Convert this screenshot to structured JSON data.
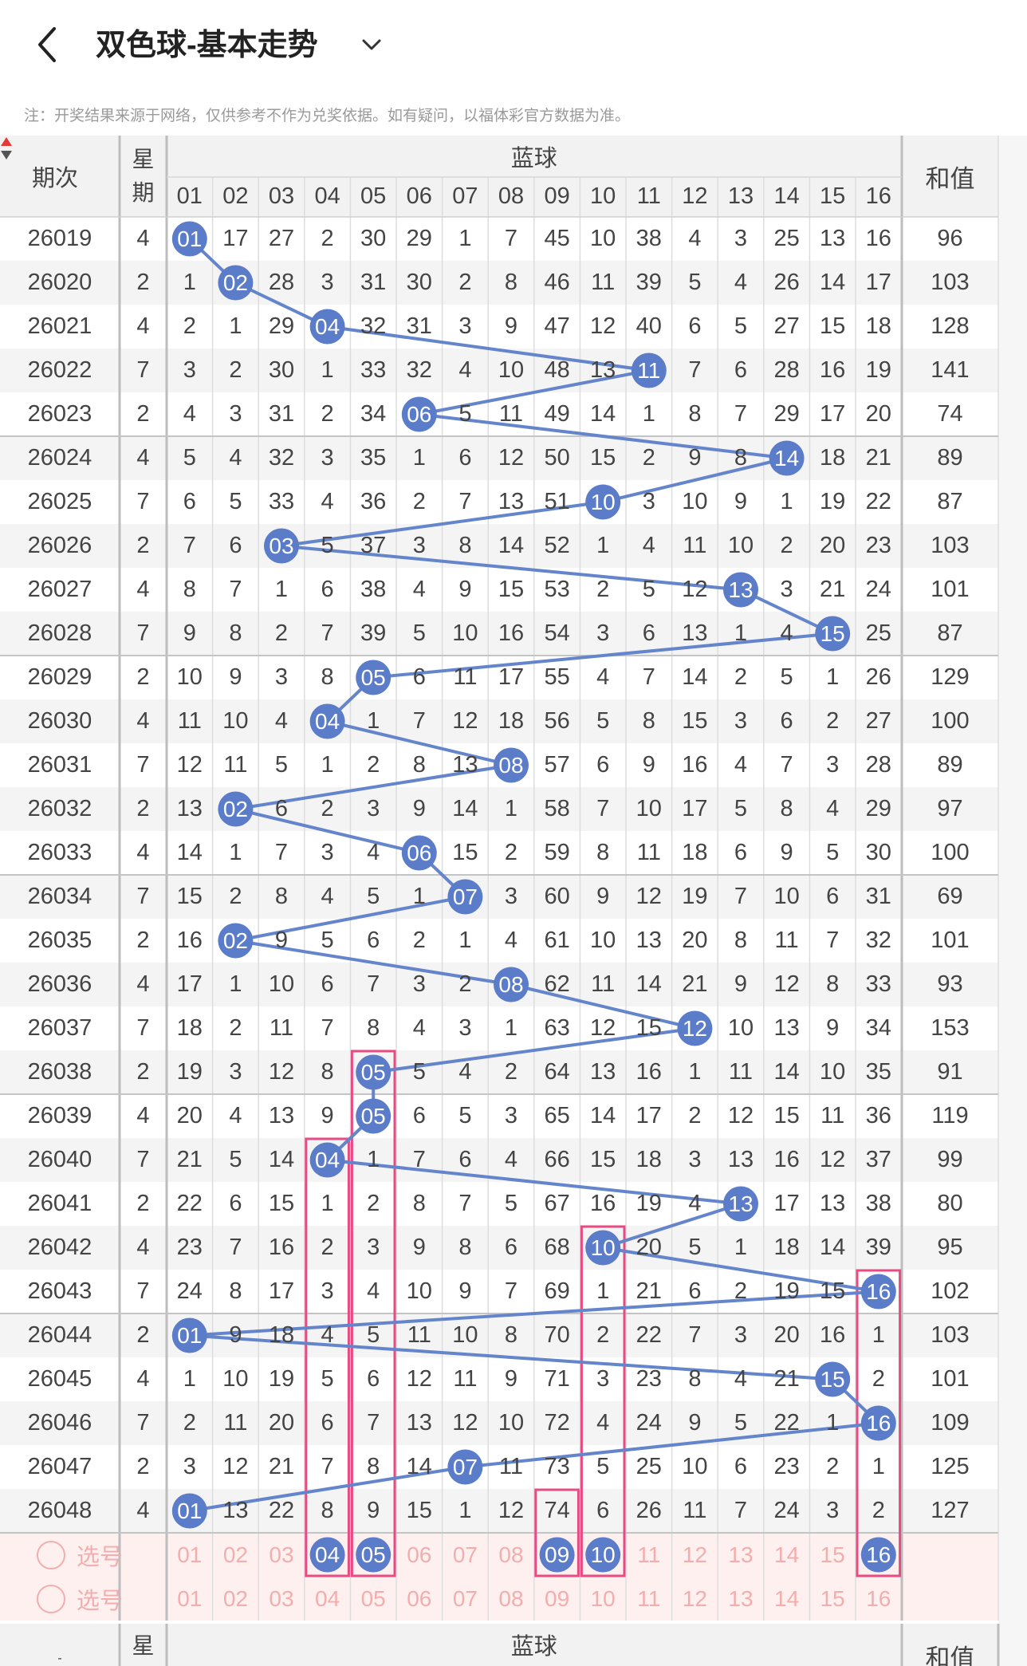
{
  "header": {
    "title": "双色球-基本走势"
  },
  "note": "注：开奖结果来源于网络，仅供参考不作为兑奖依据。如有疑问，以福体彩官方数据为准。",
  "table": {
    "col_period": "期次",
    "col_week_1": "星",
    "col_week_2": "期",
    "col_blue": "蓝球",
    "col_sum": "和值",
    "balls": [
      "01",
      "02",
      "03",
      "04",
      "05",
      "06",
      "07",
      "08",
      "09",
      "10",
      "11",
      "12",
      "13",
      "14",
      "15",
      "16"
    ],
    "rows": [
      {
        "period": "26019",
        "week": "4",
        "hit": 1,
        "miss": [
          0,
          17,
          27,
          2,
          30,
          29,
          1,
          7,
          45,
          10,
          38,
          4,
          3,
          25,
          13,
          16
        ],
        "sum": "96"
      },
      {
        "period": "26020",
        "week": "2",
        "hit": 2,
        "miss": [
          1,
          0,
          28,
          3,
          31,
          30,
          2,
          8,
          46,
          11,
          39,
          5,
          4,
          26,
          14,
          17
        ],
        "sum": "103"
      },
      {
        "period": "26021",
        "week": "4",
        "hit": 4,
        "miss": [
          2,
          1,
          29,
          0,
          32,
          31,
          3,
          9,
          47,
          12,
          40,
          6,
          5,
          27,
          15,
          18
        ],
        "sum": "128"
      },
      {
        "period": "26022",
        "week": "7",
        "hit": 11,
        "miss": [
          3,
          2,
          30,
          1,
          33,
          32,
          4,
          10,
          48,
          13,
          0,
          7,
          6,
          28,
          16,
          19
        ],
        "sum": "141"
      },
      {
        "period": "26023",
        "week": "2",
        "hit": 6,
        "miss": [
          4,
          3,
          31,
          2,
          34,
          0,
          5,
          11,
          49,
          14,
          1,
          8,
          7,
          29,
          17,
          20
        ],
        "sum": "74"
      },
      {
        "period": "26024",
        "week": "4",
        "hit": 14,
        "miss": [
          5,
          4,
          32,
          3,
          35,
          1,
          6,
          12,
          50,
          15,
          2,
          9,
          8,
          0,
          18,
          21
        ],
        "sum": "89"
      },
      {
        "period": "26025",
        "week": "7",
        "hit": 10,
        "miss": [
          6,
          5,
          33,
          4,
          36,
          2,
          7,
          13,
          51,
          0,
          3,
          10,
          9,
          1,
          19,
          22
        ],
        "sum": "87"
      },
      {
        "period": "26026",
        "week": "2",
        "hit": 3,
        "miss": [
          7,
          6,
          0,
          5,
          37,
          3,
          8,
          14,
          52,
          1,
          4,
          11,
          10,
          2,
          20,
          23
        ],
        "sum": "103"
      },
      {
        "period": "26027",
        "week": "4",
        "hit": 13,
        "miss": [
          8,
          7,
          1,
          6,
          38,
          4,
          9,
          15,
          53,
          2,
          5,
          12,
          0,
          3,
          21,
          24
        ],
        "sum": "101"
      },
      {
        "period": "26028",
        "week": "7",
        "hit": 15,
        "miss": [
          9,
          8,
          2,
          7,
          39,
          5,
          10,
          16,
          54,
          3,
          6,
          13,
          1,
          4,
          0,
          25
        ],
        "sum": "87"
      },
      {
        "period": "26029",
        "week": "2",
        "hit": 5,
        "miss": [
          10,
          9,
          3,
          8,
          0,
          6,
          11,
          17,
          55,
          4,
          7,
          14,
          2,
          5,
          1,
          26
        ],
        "sum": "129"
      },
      {
        "period": "26030",
        "week": "4",
        "hit": 4,
        "miss": [
          11,
          10,
          4,
          0,
          1,
          7,
          12,
          18,
          56,
          5,
          8,
          15,
          3,
          6,
          2,
          27
        ],
        "sum": "100"
      },
      {
        "period": "26031",
        "week": "7",
        "hit": 8,
        "miss": [
          12,
          11,
          5,
          1,
          2,
          8,
          13,
          0,
          57,
          6,
          9,
          16,
          4,
          7,
          3,
          28
        ],
        "sum": "89"
      },
      {
        "period": "26032",
        "week": "2",
        "hit": 2,
        "miss": [
          13,
          0,
          6,
          2,
          3,
          9,
          14,
          1,
          58,
          7,
          10,
          17,
          5,
          8,
          4,
          29
        ],
        "sum": "97"
      },
      {
        "period": "26033",
        "week": "4",
        "hit": 6,
        "miss": [
          14,
          1,
          7,
          3,
          4,
          0,
          15,
          2,
          59,
          8,
          11,
          18,
          6,
          9,
          5,
          30
        ],
        "sum": "100"
      },
      {
        "period": "26034",
        "week": "7",
        "hit": 7,
        "miss": [
          15,
          2,
          8,
          4,
          5,
          1,
          0,
          3,
          60,
          9,
          12,
          19,
          7,
          10,
          6,
          31
        ],
        "sum": "69"
      },
      {
        "period": "26035",
        "week": "2",
        "hit": 2,
        "miss": [
          16,
          0,
          9,
          5,
          6,
          2,
          1,
          4,
          61,
          10,
          13,
          20,
          8,
          11,
          7,
          32
        ],
        "sum": "101"
      },
      {
        "period": "26036",
        "week": "4",
        "hit": 8,
        "miss": [
          17,
          1,
          10,
          6,
          7,
          3,
          2,
          0,
          62,
          11,
          14,
          21,
          9,
          12,
          8,
          33
        ],
        "sum": "93"
      },
      {
        "period": "26037",
        "week": "7",
        "hit": 12,
        "miss": [
          18,
          2,
          11,
          7,
          8,
          4,
          3,
          1,
          63,
          12,
          15,
          0,
          10,
          13,
          9,
          34
        ],
        "sum": "153"
      },
      {
        "period": "26038",
        "week": "2",
        "hit": 5,
        "miss": [
          19,
          3,
          12,
          8,
          0,
          5,
          4,
          2,
          64,
          13,
          16,
          1,
          11,
          14,
          10,
          35
        ],
        "sum": "91"
      },
      {
        "period": "26039",
        "week": "4",
        "hit": 5,
        "miss": [
          20,
          4,
          13,
          9,
          0,
          6,
          5,
          3,
          65,
          14,
          17,
          2,
          12,
          15,
          11,
          36
        ],
        "sum": "119"
      },
      {
        "period": "26040",
        "week": "7",
        "hit": 4,
        "miss": [
          21,
          5,
          14,
          0,
          1,
          7,
          6,
          4,
          66,
          15,
          18,
          3,
          13,
          16,
          12,
          37
        ],
        "sum": "99"
      },
      {
        "period": "26041",
        "week": "2",
        "hit": 13,
        "miss": [
          22,
          6,
          15,
          1,
          2,
          8,
          7,
          5,
          67,
          16,
          19,
          4,
          0,
          17,
          13,
          38
        ],
        "sum": "80"
      },
      {
        "period": "26042",
        "week": "4",
        "hit": 10,
        "miss": [
          23,
          7,
          16,
          2,
          3,
          9,
          8,
          6,
          68,
          0,
          20,
          5,
          1,
          18,
          14,
          39
        ],
        "sum": "95"
      },
      {
        "period": "26043",
        "week": "7",
        "hit": 16,
        "miss": [
          24,
          8,
          17,
          3,
          4,
          10,
          9,
          7,
          69,
          1,
          21,
          6,
          2,
          19,
          15,
          0
        ],
        "sum": "102"
      },
      {
        "period": "26044",
        "week": "2",
        "hit": 1,
        "miss": [
          0,
          9,
          18,
          4,
          5,
          11,
          10,
          8,
          70,
          2,
          22,
          7,
          3,
          20,
          16,
          1
        ],
        "sum": "103"
      },
      {
        "period": "26045",
        "week": "4",
        "hit": 15,
        "miss": [
          1,
          10,
          19,
          5,
          6,
          12,
          11,
          9,
          71,
          3,
          23,
          8,
          4,
          21,
          0,
          2
        ],
        "sum": "101"
      },
      {
        "period": "26046",
        "week": "7",
        "hit": 16,
        "miss": [
          2,
          11,
          20,
          6,
          7,
          13,
          12,
          10,
          72,
          4,
          24,
          9,
          5,
          22,
          1,
          0
        ],
        "sum": "109"
      },
      {
        "period": "26047",
        "week": "2",
        "hit": 7,
        "miss": [
          3,
          12,
          21,
          7,
          8,
          14,
          0,
          11,
          73,
          5,
          25,
          10,
          6,
          23,
          2,
          1
        ],
        "sum": "125"
      },
      {
        "period": "26048",
        "week": "4",
        "hit": 1,
        "miss": [
          0,
          13,
          22,
          8,
          9,
          15,
          1,
          12,
          74,
          6,
          26,
          11,
          7,
          24,
          3,
          2
        ],
        "sum": "127"
      }
    ],
    "pick_label": "选号",
    "pick_selected": [
      4,
      5,
      9,
      10,
      16
    ],
    "footer_col_week_1": "星",
    "footer_col_blue": "蓝球",
    "footer_col_sum": "和值",
    "footer_period_dash": "-"
  },
  "colors": {
    "ball": "#5b7cc8",
    "line": "#6485cc",
    "highlight_box": "#e84a82",
    "pick_text": "#f2aeae",
    "pick_bg": "#fdf0ee"
  }
}
